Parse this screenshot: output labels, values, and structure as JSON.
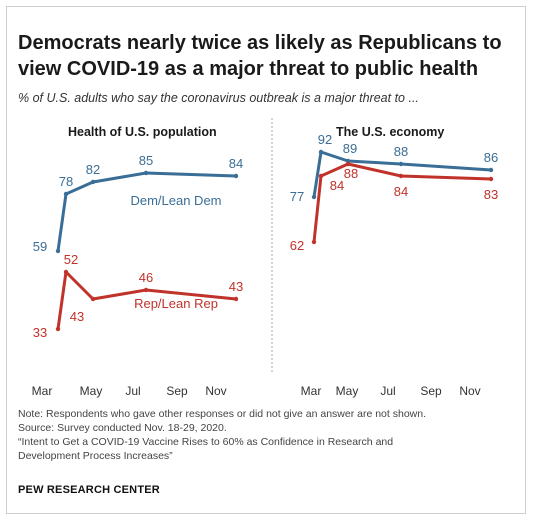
{
  "title": "Democrats nearly twice as likely as Republicans to view COVID-19 as a major threat to public health",
  "subtitle": "% of U.S. adults who say the coronavirus outbreak is a major threat to ...",
  "colors": {
    "dem": "#3a6e96",
    "rep": "#c0322a",
    "divider": "#aaaaaa",
    "tick": "#333333"
  },
  "chart_data": [
    {
      "type": "line",
      "title": "Health of U.S. population",
      "x_ticks": [
        "Mar",
        "May",
        "Jul",
        "Sep",
        "Nov"
      ],
      "series": [
        {
          "name": "Dem/Lean Dem",
          "color": "#3a6e96",
          "values": [
            59,
            78,
            82,
            85,
            84
          ]
        },
        {
          "name": "Rep/Lean Rep",
          "color": "#c0322a",
          "values": [
            33,
            52,
            43,
            46,
            43
          ]
        }
      ],
      "ylim": [
        0,
        100
      ]
    },
    {
      "type": "line",
      "title": "The U.S. economy",
      "x_ticks": [
        "Mar",
        "May",
        "Jul",
        "Sep",
        "Nov"
      ],
      "series": [
        {
          "name": "Dem/Lean Dem",
          "color": "#3a6e96",
          "values": [
            77,
            92,
            89,
            88,
            86
          ]
        },
        {
          "name": "Rep/Lean Rep",
          "color": "#c0322a",
          "values": [
            62,
            84,
            88,
            84,
            83
          ]
        }
      ],
      "ylim": [
        0,
        100
      ]
    }
  ],
  "notes": {
    "line1": "Note: Respondents who gave other responses or did not give an answer are not shown.",
    "line2": "Source: Survey conducted Nov. 18-29, 2020.",
    "line3": "“Intent to Get a COVID-19 Vaccine Rises to 60% as Confidence in Research and",
    "line4": "Development Process Increases”"
  },
  "brand": "PEW RESEARCH CENTER"
}
